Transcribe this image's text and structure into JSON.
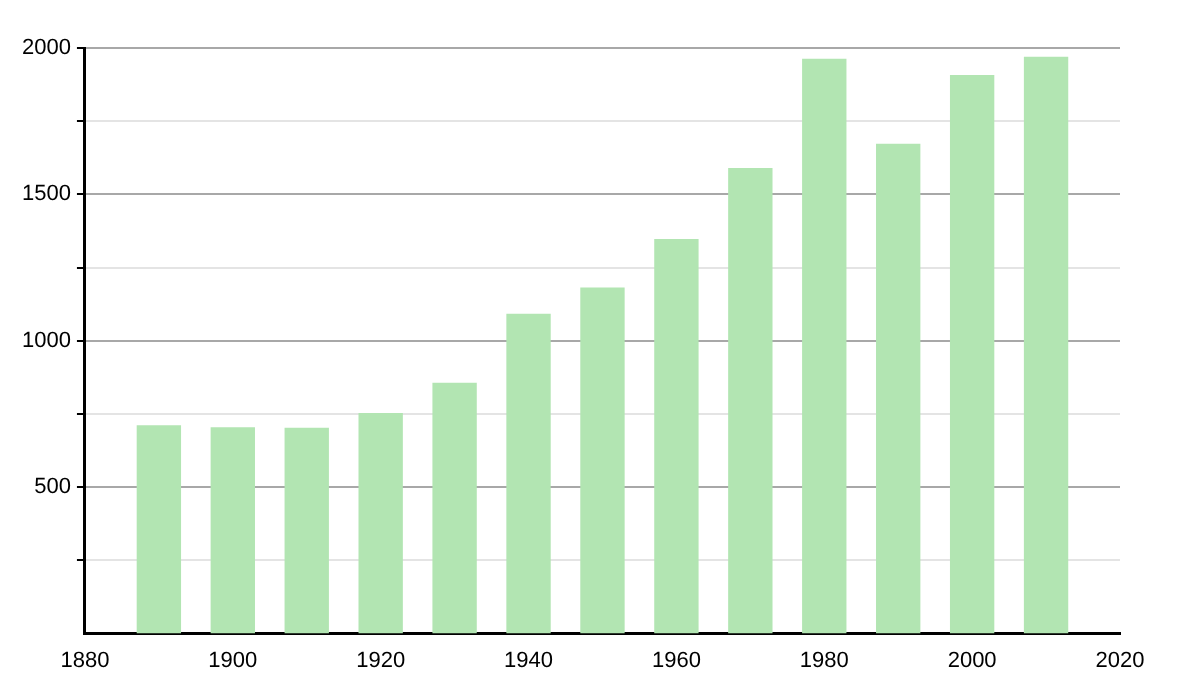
{
  "chart_data": {
    "type": "bar",
    "x": [
      1890,
      1900,
      1910,
      1920,
      1930,
      1940,
      1950,
      1960,
      1970,
      1980,
      1990,
      2000,
      2010
    ],
    "values": [
      712,
      705,
      703,
      753,
      857,
      1092,
      1182,
      1348,
      1590,
      1963,
      1673,
      1908,
      1970
    ],
    "color": "#b2e5b2",
    "xlim": [
      1880,
      2020
    ],
    "xticks": [
      1880,
      1900,
      1920,
      1940,
      1960,
      1980,
      2000,
      2020
    ],
    "ylim": [
      0,
      2000
    ],
    "yticks": [
      {
        "value": 250,
        "label": null
      },
      500,
      {
        "value": 750,
        "label": null
      },
      1000,
      {
        "value": 1250,
        "label": null
      },
      1500,
      {
        "value": 1750,
        "label": null
      },
      2000
    ],
    "grid": "y"
  }
}
